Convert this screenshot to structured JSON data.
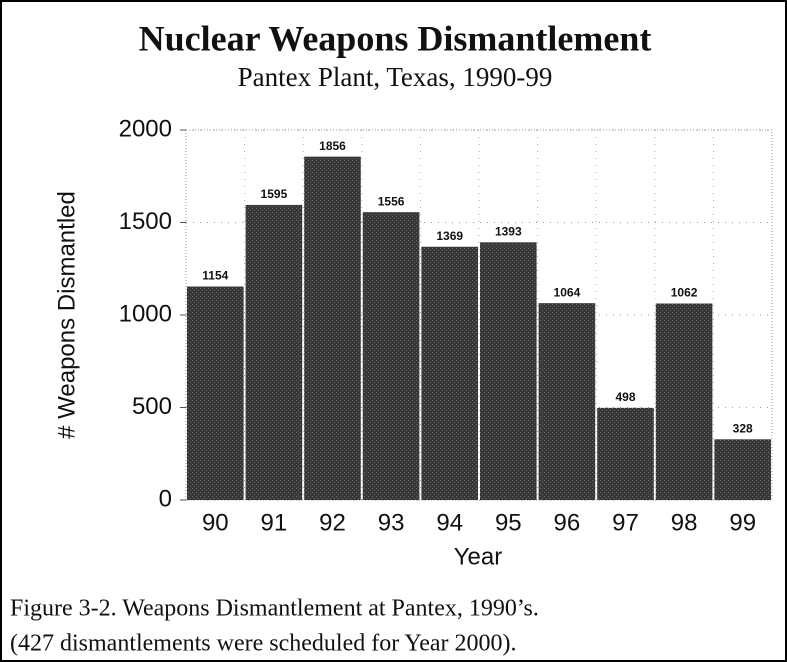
{
  "chart_data": {
    "type": "bar",
    "title": "Nuclear Weapons Dismantlement",
    "subtitle": "Pantex Plant, Texas, 1990-99",
    "x_label": "Year",
    "y_label": "# Weapons Dismantled",
    "categories": [
      "90",
      "91",
      "92",
      "93",
      "94",
      "95",
      "96",
      "97",
      "98",
      "99"
    ],
    "values": [
      1154,
      1595,
      1856,
      1556,
      1369,
      1393,
      1064,
      498,
      1062,
      328
    ],
    "color": "#383838",
    "ylim": [
      0,
      2000
    ],
    "yticks": [
      0,
      500,
      1000,
      1500,
      2000
    ],
    "grid": true,
    "caption": [
      "Figure 3-2. Weapons Dismantlement at Pantex, 1990’s.",
      "(427 dismantlements were scheduled for Year 2000)."
    ]
  }
}
